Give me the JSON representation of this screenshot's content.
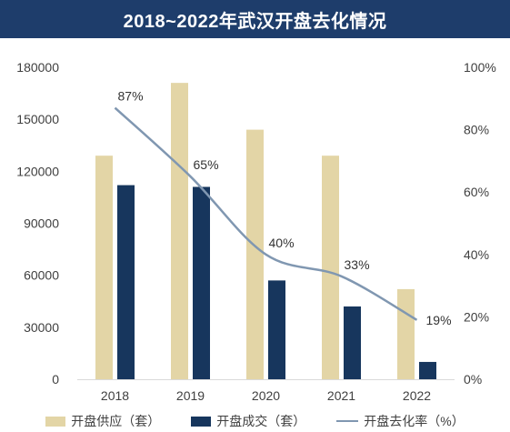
{
  "chart_data": {
    "type": "bar",
    "title": "2018~2022年武汉开盘去化情况",
    "categories": [
      "2018",
      "2019",
      "2020",
      "2021",
      "2022"
    ],
    "series": [
      {
        "name": "开盘供应（套）",
        "type": "bar",
        "axis": "left",
        "color": "#e3d5a6",
        "values": [
          129000,
          171000,
          144000,
          129000,
          52000
        ]
      },
      {
        "name": "开盘成交（套）",
        "type": "bar",
        "axis": "left",
        "color": "#17365d",
        "values": [
          112000,
          111000,
          57000,
          42000,
          10000
        ]
      },
      {
        "name": "开盘去化率（%）",
        "type": "line",
        "axis": "right",
        "color": "#8097b1",
        "values": [
          87,
          65,
          40,
          33,
          19
        ],
        "labels": [
          "87%",
          "65%",
          "40%",
          "33%",
          "19%"
        ]
      }
    ],
    "y_left": {
      "min": 0,
      "max": 180000,
      "ticks": [
        "0",
        "30000",
        "60000",
        "90000",
        "120000",
        "150000",
        "180000"
      ]
    },
    "y_right": {
      "min": 0,
      "max": 100,
      "ticks": [
        "0%",
        "20%",
        "40%",
        "60%",
        "80%",
        "100%"
      ]
    },
    "legend_position": "bottom",
    "grid": false
  }
}
